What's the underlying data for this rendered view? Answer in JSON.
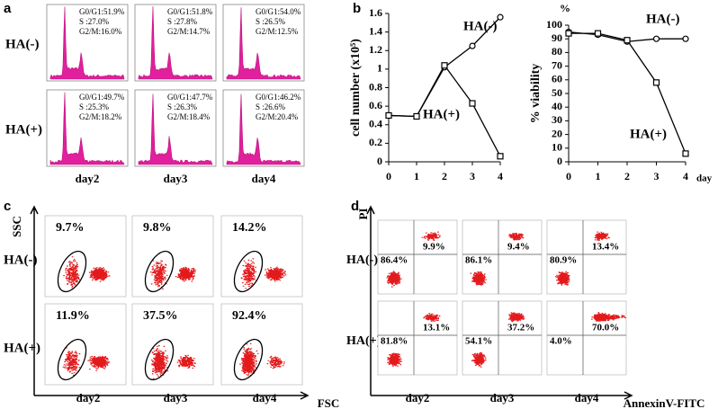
{
  "panel_labels": [
    "a",
    "b",
    "c",
    "d"
  ],
  "panel_a": {
    "rows": [
      "HA(-)",
      "HA(+)"
    ],
    "columns": [
      "day2",
      "day3",
      "day4"
    ],
    "stats": [
      [
        [
          "G0/G1:51.9%",
          "S :27.0%",
          "G2/M:16.0%"
        ],
        [
          "G0/G1:51.8%",
          "S :27.8%",
          "G2/M:14.7%"
        ],
        [
          "G0/G1:54.0%",
          "S :26.5%",
          "G2/M:12.5%"
        ]
      ],
      [
        [
          "G0/G1:49.7%",
          "S :25.3%",
          "G2/M:18.2%"
        ],
        [
          "G0/G1:47.7%",
          "S :26.3%",
          "G2/M:18.4%"
        ],
        [
          "G0/G1:46.2%",
          "S :26.6%",
          "G2/M:20.4%"
        ]
      ]
    ]
  },
  "chart_data": [
    {
      "type": "line",
      "ylabel": "cell number (x10⁵)",
      "x": [
        0,
        1,
        2,
        3,
        4
      ],
      "xlim": [
        0,
        4
      ],
      "xticks": [
        0,
        1,
        2,
        3,
        4
      ],
      "ylim": [
        0,
        1.6
      ],
      "yticks": [
        0,
        0.2,
        0.4,
        0.6,
        0.8,
        1,
        1.2,
        1.4,
        1.6
      ],
      "series": [
        {
          "name": "HA(-)",
          "color": "#000000",
          "marker": "circle",
          "values": [
            0.5,
            0.49,
            1.02,
            1.25,
            1.56
          ]
        },
        {
          "name": "HA(+)",
          "color": "#000000",
          "marker": "square",
          "values": [
            0.5,
            0.49,
            1.04,
            0.63,
            0.06
          ]
        }
      ]
    },
    {
      "type": "line",
      "ylabel": "% viability",
      "y_unit": "%",
      "x_unit": "day",
      "x": [
        0,
        1,
        2,
        3,
        4
      ],
      "xlim": [
        0,
        4
      ],
      "xticks": [
        0,
        1,
        2,
        3,
        4
      ],
      "ylim": [
        0,
        100
      ],
      "yticks": [
        0,
        10,
        20,
        30,
        40,
        50,
        60,
        70,
        80,
        90,
        100
      ],
      "series": [
        {
          "name": "HA(-)",
          "color": "#000000",
          "marker": "circle",
          "values": [
            95,
            93,
            88,
            90,
            90
          ]
        },
        {
          "name": "HA(+)",
          "color": "#000000",
          "marker": "square",
          "values": [
            94,
            94,
            89,
            58,
            6
          ]
        }
      ]
    }
  ],
  "panel_c": {
    "y_axis": "SSC",
    "x_axis": "FSC",
    "rows": [
      "HA(-)",
      "HA(+)"
    ],
    "columns": [
      "day2",
      "day3",
      "day4"
    ],
    "percents": [
      [
        "9.7%",
        "9.8%",
        "14.2%"
      ],
      [
        "11.9%",
        "37.5%",
        "92.4%"
      ]
    ]
  },
  "panel_d": {
    "y_axis": "PI",
    "x_axis": "AnnexinV-FITC",
    "rows": [
      "HA(-)",
      "HA(+)"
    ],
    "columns": [
      "day2",
      "day3",
      "day4"
    ],
    "percents": [
      [
        [
          "86.4%",
          "9.9%"
        ],
        [
          "86.1%",
          "9.4%"
        ],
        [
          "80.9%",
          "13.4%"
        ]
      ],
      [
        [
          "81.8%",
          "13.1%"
        ],
        [
          "54.1%",
          "37.2%"
        ],
        [
          "4.0%",
          "70.0%"
        ]
      ]
    ]
  }
}
